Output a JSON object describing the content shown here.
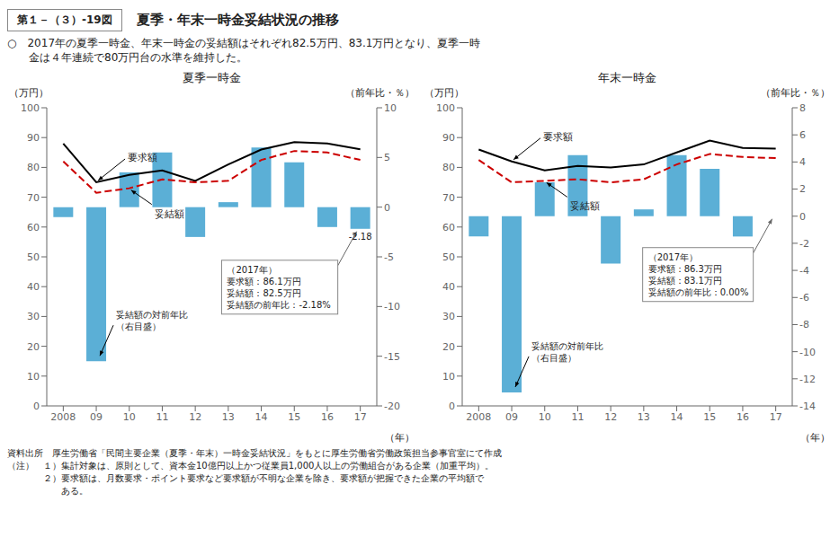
{
  "figure_number": "第１－（３）-19図",
  "title": "夏季・年末一時金妥結状況の推移",
  "subtitle": [
    "○　2017年の夏季一時金、年末一時金の妥結額はそれぞれ82.5万円、83.1万円となり、夏季一時",
    "　　金は４年連続で80万円台の水準を維持した。"
  ],
  "footnotes": [
    "資料出所　厚生労働省「民間主要企業（夏季・年末）一時金妥結状況」をもとに厚生労働省労働政策担当参事官室にて作成",
    "（注）　１）集計対象は、原則として、資本金10億円以上かつ従業員1,000人以上の労働組合がある企業（加重平均）。",
    "　　　　２）要求額は、月数要求・ポイント要求など要求額が不明な企業を除き、要求額が把握できた企業の平均額で",
    "　　　　　　ある。"
  ],
  "chart_data": [
    {
      "type": "bar",
      "title": "夏季一時金",
      "categories": [
        "2008",
        "09",
        "10",
        "11",
        "12",
        "13",
        "14",
        "15",
        "16",
        "17"
      ],
      "xlabel": "（年）",
      "ylabel": "（万円）",
      "y2label": "（前年比・％）",
      "ylim": [
        0,
        100
      ],
      "yticks": [
        0,
        10,
        20,
        30,
        40,
        50,
        60,
        70,
        80,
        90,
        100
      ],
      "y2lim": [
        -20,
        10
      ],
      "y2ticks": [
        -20,
        -15,
        -10,
        -5,
        0,
        5,
        10
      ],
      "grid": false,
      "series": [
        {
          "name": "妥結額の対前年比\n（右目盛）",
          "type": "bar",
          "axis": "y2",
          "color": "#5bafd6",
          "values": [
            -1.0,
            -15.5,
            3.5,
            5.5,
            -3.0,
            0.5,
            6.0,
            4.5,
            -2.0,
            -2.18
          ],
          "value_labels": [
            null,
            null,
            null,
            null,
            null,
            null,
            null,
            null,
            null,
            "-2.18"
          ]
        },
        {
          "name": "要求額",
          "type": "line",
          "axis": "y",
          "color": "#000000",
          "line_style": "solid",
          "values": [
            88.0,
            75.0,
            77.5,
            79.0,
            75.5,
            81.0,
            86.0,
            88.5,
            88.0,
            86.1
          ]
        },
        {
          "name": "妥結額",
          "type": "line",
          "axis": "y",
          "color": "#cc0000",
          "line_style": "dashed",
          "values": [
            82.0,
            71.5,
            73.0,
            76.0,
            75.0,
            75.5,
            82.5,
            85.5,
            85.0,
            82.5
          ]
        }
      ],
      "annotations": [
        "（2017年）\n要求額：86.1万円\n妥結額：82.5万円\n妥結額の前年比：-2.18%"
      ]
    },
    {
      "type": "bar",
      "title": "年末一時金",
      "categories": [
        "2008",
        "09",
        "10",
        "11",
        "12",
        "13",
        "14",
        "15",
        "16",
        "17"
      ],
      "xlabel": "（年）",
      "ylabel": "（万円）",
      "y2label": "（前年比・％）",
      "ylim": [
        0,
        100
      ],
      "yticks": [
        0,
        10,
        20,
        30,
        40,
        50,
        60,
        70,
        80,
        90,
        100
      ],
      "y2lim": [
        -14,
        8
      ],
      "y2ticks": [
        -14,
        -12,
        -10,
        -8,
        -6,
        -4,
        -2,
        0,
        2,
        4,
        6,
        8
      ],
      "grid": false,
      "series": [
        {
          "name": "妥結額の対前年比\n（右目盛）",
          "type": "bar",
          "axis": "y2",
          "color": "#5bafd6",
          "values": [
            -1.5,
            -13.0,
            2.5,
            4.5,
            -3.5,
            0.5,
            4.5,
            3.5,
            -1.5,
            0.0
          ],
          "value_labels": [
            null,
            null,
            null,
            null,
            null,
            null,
            null,
            null,
            null,
            "0.00"
          ]
        },
        {
          "name": "要求額",
          "type": "line",
          "axis": "y",
          "color": "#000000",
          "line_style": "solid",
          "values": [
            86.0,
            82.0,
            79.0,
            80.5,
            80.0,
            81.0,
            85.0,
            89.0,
            86.5,
            86.3
          ]
        },
        {
          "name": "妥結額",
          "type": "line",
          "axis": "y",
          "color": "#cc0000",
          "line_style": "dashed",
          "values": [
            82.5,
            75.0,
            75.5,
            76.0,
            75.0,
            76.0,
            81.0,
            84.5,
            83.5,
            83.1
          ]
        }
      ],
      "annotations": [
        "（2017年）\n要求額：86.3万円\n妥結額：83.1万円\n妥結額の前年比：0.00%"
      ]
    }
  ]
}
